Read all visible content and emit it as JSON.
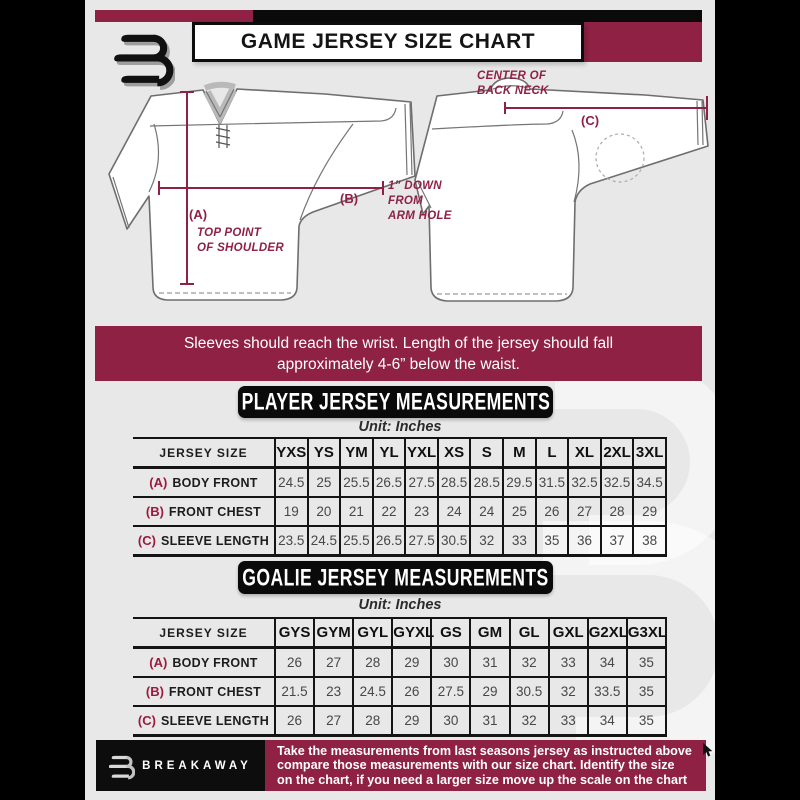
{
  "colors": {
    "maroon": "#8e2144",
    "black": "#0a0a0a",
    "background": "#e8e8e9"
  },
  "header": {
    "title": "GAME JERSEY SIZE CHART"
  },
  "diagram": {
    "front": {
      "label_a": "(A)",
      "caption_a_line1": "TOP POINT",
      "caption_a_line2": "OF SHOULDER",
      "label_b": "(B)",
      "caption_b_line1": "1” DOWN",
      "caption_b_line2": "FROM",
      "caption_b_line3": "ARM HOLE"
    },
    "back": {
      "label_c": "(C)",
      "caption_c_line1": "CENTER OF",
      "caption_c_line2": "BACK NECK"
    }
  },
  "note_banner": {
    "line1": "Sleeves should reach the wrist. Length of the jersey should fall",
    "line2": "approximately 4-6” below the waist."
  },
  "player_section": {
    "heading": "PLAYER JERSEY MEASUREMENTS",
    "unit_label": "Unit: Inches",
    "table": {
      "corner_label": "JERSEY SIZE",
      "columns": [
        "YXS",
        "YS",
        "YM",
        "YL",
        "YXL",
        "XS",
        "S",
        "M",
        "L",
        "XL",
        "2XL",
        "3XL"
      ],
      "rows": [
        {
          "key": "(A)",
          "label": "BODY FRONT",
          "values": [
            "24.5",
            "25",
            "25.5",
            "26.5",
            "27.5",
            "28.5",
            "28.5",
            "29.5",
            "31.5",
            "32.5",
            "32.5",
            "34.5"
          ]
        },
        {
          "key": "(B)",
          "label": "FRONT CHEST",
          "values": [
            "19",
            "20",
            "21",
            "22",
            "23",
            "24",
            "24",
            "25",
            "26",
            "27",
            "28",
            "29"
          ]
        },
        {
          "key": "(C)",
          "label": "SLEEVE LENGTH",
          "values": [
            "23.5",
            "24.5",
            "25.5",
            "26.5",
            "27.5",
            "30.5",
            "32",
            "33",
            "35",
            "36",
            "37",
            "38"
          ]
        }
      ]
    }
  },
  "goalie_section": {
    "heading": "GOALIE JERSEY MEASUREMENTS",
    "unit_label": "Unit: Inches",
    "table": {
      "corner_label": "JERSEY SIZE",
      "columns": [
        "GYS",
        "GYM",
        "GYL",
        "GYXL",
        "GS",
        "GM",
        "GL",
        "GXL",
        "G2XL",
        "G3XL"
      ],
      "rows": [
        {
          "key": "(A)",
          "label": "BODY FRONT",
          "values": [
            "26",
            "27",
            "28",
            "29",
            "30",
            "31",
            "32",
            "33",
            "34",
            "35"
          ]
        },
        {
          "key": "(B)",
          "label": "FRONT CHEST",
          "values": [
            "21.5",
            "23",
            "24.5",
            "26",
            "27.5",
            "29",
            "30.5",
            "32",
            "33.5",
            "35"
          ]
        },
        {
          "key": "(C)",
          "label": "SLEEVE LENGTH",
          "values": [
            "26",
            "27",
            "28",
            "29",
            "30",
            "31",
            "32",
            "33",
            "34",
            "35"
          ]
        }
      ]
    }
  },
  "footer": {
    "brand": "BREAKAWAY",
    "note_line1": "Take the measurements from last seasons jersey as instructed above",
    "note_line2": "compare those measurements  with our size chart. Identify the size",
    "note_line3": "on the chart, if you need a larger size move up the scale on the chart"
  }
}
